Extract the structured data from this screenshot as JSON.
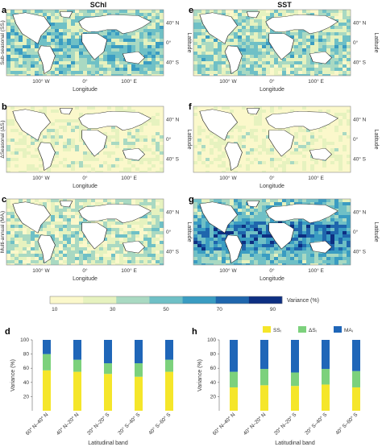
{
  "figure": {
    "columns": [
      "SChl",
      "SST"
    ],
    "panel_letters": [
      "a",
      "b",
      "c",
      "d",
      "e",
      "f",
      "g",
      "h"
    ],
    "rows": [
      "Sub-seasonal (SSᵢ)",
      "ΔSeasonal (ΔSᵢ)",
      "Multi-annual (MAᵢ)"
    ],
    "map_x_ticks": [
      "100° W",
      "0°",
      "100° E"
    ],
    "map_y_ticks": [
      "40° N",
      "0°",
      "40° S"
    ],
    "map_xlabel": "Longitude",
    "map_ylabel": "Latitude"
  },
  "colorbar": {
    "label": "Variance (%)",
    "ticks": [
      "10",
      "30",
      "50",
      "70",
      "90"
    ],
    "colors": [
      "#fbf8cb",
      "#e6f2bf",
      "#a9d9c2",
      "#6fc0c6",
      "#3a9cc2",
      "#1f66ad",
      "#0d2f82"
    ]
  },
  "map_intensity": {
    "SChl": {
      "sub_seasonal": 0.45,
      "delta_seasonal": 0.15,
      "multi_annual": 0.3
    },
    "SST": {
      "sub_seasonal": 0.4,
      "delta_seasonal": 0.12,
      "multi_annual": 0.55
    }
  },
  "chart_data": [
    {
      "type": "bar",
      "panel": "d",
      "stacked": true,
      "categories": [
        "60° N–40° N",
        "40° N–20° N",
        "20° N–20° S",
        "20° S–40° S",
        "40° S–60° S"
      ],
      "series": [
        {
          "name": "SSᵢ",
          "color": "#f5e62a",
          "values": [
            57,
            55,
            52,
            48,
            55
          ]
        },
        {
          "name": "ΔSᵢ",
          "color": "#7cd17c",
          "values": [
            23,
            17,
            15,
            19,
            17
          ]
        },
        {
          "name": "MAᵢ",
          "color": "#1f66b8",
          "values": [
            20,
            28,
            33,
            33,
            28
          ]
        }
      ],
      "xlabel": "Latitudinal band",
      "ylabel": "Variance (%)",
      "ylim": [
        0,
        100
      ],
      "yticks": [
        20,
        40,
        60,
        80,
        100
      ]
    },
    {
      "type": "bar",
      "panel": "h",
      "stacked": true,
      "categories": [
        "60° N–40° N",
        "40° N–20° N",
        "20° N–20° S",
        "20° S–40° S",
        "40° S–60° S"
      ],
      "series": [
        {
          "name": "SSᵢ",
          "color": "#f5e62a",
          "values": [
            33,
            36,
            35,
            37,
            33
          ]
        },
        {
          "name": "ΔSᵢ",
          "color": "#7cd17c",
          "values": [
            22,
            23,
            19,
            22,
            23
          ]
        },
        {
          "name": "MAᵢ",
          "color": "#1f66b8",
          "values": [
            45,
            41,
            46,
            41,
            44
          ]
        }
      ],
      "legend": "top-right",
      "xlabel": "Latitudinal band",
      "ylabel": "Variance (%)",
      "ylim": [
        0,
        100
      ],
      "yticks": [
        20,
        40,
        60,
        80,
        100
      ]
    }
  ]
}
